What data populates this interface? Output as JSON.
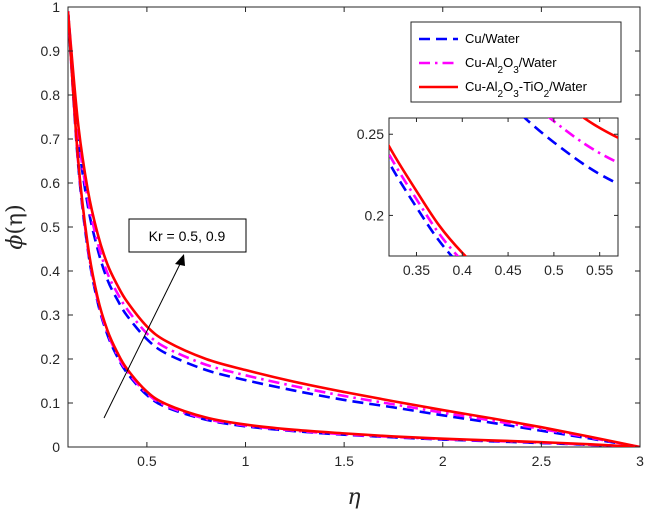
{
  "chart_data": {
    "type": "line",
    "xlabel": "η",
    "ylabel_symbol": "ϕ",
    "ylabel_arg": "(η)",
    "xlim": [
      0.1,
      3
    ],
    "ylim": [
      0,
      1
    ],
    "xticks": [
      0.5,
      1,
      1.5,
      2,
      2.5,
      3
    ],
    "xtick_labels": [
      "0.5",
      "1",
      "1.5",
      "2",
      "2.5",
      "3"
    ],
    "yticks": [
      0,
      0.1,
      0.2,
      0.3,
      0.4,
      0.5,
      0.6,
      0.7,
      0.8,
      0.9,
      1
    ],
    "ytick_labels": [
      "0",
      "0.1",
      "0.2",
      "0.3",
      "0.4",
      "0.5",
      "0.6",
      "0.7",
      "0.8",
      "0.9",
      "1"
    ],
    "legend_position": "top-right",
    "legend": [
      {
        "label_main": "Cu/Water",
        "parts": [
          {
            "t": "Cu/Water",
            "sub": false
          }
        ],
        "color": "#0000ff",
        "dash": "dashed"
      },
      {
        "label_main": "Cu-Al2O3/Water",
        "parts": [
          {
            "t": "Cu-Al",
            "sub": false
          },
          {
            "t": "2",
            "sub": true
          },
          {
            "t": "O",
            "sub": false
          },
          {
            "t": "3",
            "sub": true
          },
          {
            "t": "/Water",
            "sub": false
          }
        ],
        "color": "#ff00ff",
        "dash": "dashdot"
      },
      {
        "label_main": "Cu-Al2O3-TiO2/Water",
        "parts": [
          {
            "t": "Cu-Al",
            "sub": false
          },
          {
            "t": "2",
            "sub": true
          },
          {
            "t": "O",
            "sub": false
          },
          {
            "t": "3",
            "sub": true
          },
          {
            "t": "-TiO",
            "sub": false
          },
          {
            "t": "2",
            "sub": true
          },
          {
            "t": "/Water",
            "sub": false
          }
        ],
        "color": "#ff0000",
        "dash": "solid"
      }
    ],
    "annotation": "Kr = 0.5, 0.9",
    "series": [
      {
        "name": "Cu/Water, Kr = 0.5",
        "color": "#0000ff",
        "dash": "dashed",
        "x": [
          0.1,
          0.15,
          0.2,
          0.25,
          0.3,
          0.35,
          0.4,
          0.5,
          0.6,
          0.8,
          1.0,
          1.25,
          1.5,
          1.75,
          2.0,
          2.25,
          2.5,
          2.75,
          3.0
        ],
        "y": [
          0.99,
          0.71,
          0.55,
          0.45,
          0.38,
          0.335,
          0.298,
          0.245,
          0.212,
          0.175,
          0.152,
          0.128,
          0.107,
          0.09,
          0.072,
          0.055,
          0.037,
          0.019,
          0.0
        ]
      },
      {
        "name": "Cu-Al2O3/Water, Kr = 0.5",
        "color": "#ff00ff",
        "dash": "dashdot",
        "x": [
          0.1,
          0.15,
          0.2,
          0.25,
          0.3,
          0.35,
          0.4,
          0.5,
          0.6,
          0.8,
          1.0,
          1.25,
          1.5,
          1.75,
          2.0,
          2.25,
          2.5,
          2.75,
          3.0
        ],
        "y": [
          0.99,
          0.72,
          0.565,
          0.465,
          0.395,
          0.35,
          0.313,
          0.258,
          0.225,
          0.187,
          0.163,
          0.138,
          0.116,
          0.097,
          0.078,
          0.06,
          0.041,
          0.021,
          0.0
        ]
      },
      {
        "name": "Cu-Al2O3-TiO2/Water, Kr = 0.5",
        "color": "#ff0000",
        "dash": "solid",
        "x": [
          0.1,
          0.15,
          0.2,
          0.25,
          0.3,
          0.35,
          0.4,
          0.5,
          0.6,
          0.8,
          1.0,
          1.25,
          1.5,
          1.75,
          2.0,
          2.25,
          2.5,
          2.75,
          3.0
        ],
        "y": [
          0.99,
          0.74,
          0.585,
          0.485,
          0.415,
          0.368,
          0.33,
          0.274,
          0.24,
          0.2,
          0.175,
          0.148,
          0.125,
          0.104,
          0.084,
          0.065,
          0.045,
          0.023,
          0.0
        ]
      },
      {
        "name": "Cu/Water, Kr = 0.9",
        "color": "#0000ff",
        "dash": "dashed",
        "x": [
          0.1,
          0.15,
          0.2,
          0.25,
          0.3,
          0.35,
          0.4,
          0.5,
          0.6,
          0.8,
          1.0,
          1.25,
          1.5,
          1.75,
          2.0,
          2.25,
          2.5,
          2.75,
          3.0
        ],
        "y": [
          0.99,
          0.65,
          0.45,
          0.33,
          0.255,
          0.205,
          0.168,
          0.118,
          0.09,
          0.062,
          0.047,
          0.036,
          0.028,
          0.022,
          0.017,
          0.013,
          0.009,
          0.005,
          0.0
        ]
      },
      {
        "name": "Cu-Al2O3/Water, Kr = 0.9",
        "color": "#ff00ff",
        "dash": "dashdot",
        "x": [
          0.1,
          0.15,
          0.2,
          0.25,
          0.3,
          0.35,
          0.4,
          0.5,
          0.6,
          0.8,
          1.0,
          1.25,
          1.5,
          1.75,
          2.0,
          2.25,
          2.5,
          2.75,
          3.0
        ],
        "y": [
          0.99,
          0.655,
          0.455,
          0.335,
          0.26,
          0.21,
          0.172,
          0.122,
          0.093,
          0.064,
          0.049,
          0.037,
          0.029,
          0.023,
          0.018,
          0.014,
          0.01,
          0.005,
          0.0
        ]
      },
      {
        "name": "Cu-Al2O3-TiO2/Water, Kr = 0.9",
        "color": "#ff0000",
        "dash": "solid",
        "x": [
          0.1,
          0.15,
          0.2,
          0.25,
          0.3,
          0.35,
          0.4,
          0.5,
          0.6,
          0.8,
          1.0,
          1.25,
          1.5,
          1.75,
          2.0,
          2.25,
          2.5,
          2.75,
          3.0
        ],
        "y": [
          0.99,
          0.66,
          0.46,
          0.34,
          0.265,
          0.215,
          0.177,
          0.126,
          0.097,
          0.067,
          0.051,
          0.039,
          0.031,
          0.024,
          0.019,
          0.015,
          0.011,
          0.006,
          0.0
        ]
      }
    ],
    "inset": {
      "xlim": [
        0.32,
        0.57
      ],
      "ylim": [
        0.175,
        0.26
      ],
      "xticks": [
        0.35,
        0.4,
        0.45,
        0.5,
        0.55
      ],
      "xtick_labels": [
        "0.35",
        "0.4",
        "0.45",
        "0.5",
        "0.55"
      ],
      "yticks": [
        0.2,
        0.25
      ],
      "ytick_labels": [
        "0.2",
        "0.25"
      ]
    }
  }
}
